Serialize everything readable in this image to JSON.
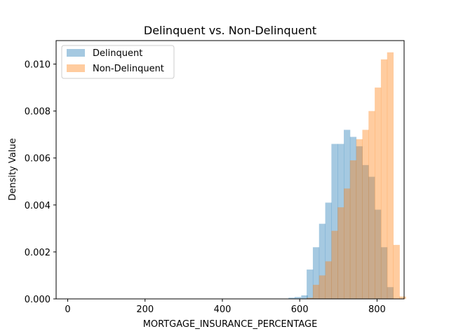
{
  "chart_data": {
    "type": "bar",
    "title": "Delinquent vs. Non-Delinquent",
    "xlabel": "MORTGAGE_INSURANCE_PERCENTAGE",
    "ylabel": "Density Value",
    "xlim": [
      -30,
      870
    ],
    "ylim": [
      0,
      0.011
    ],
    "xticks": [
      0,
      200,
      400,
      600,
      800
    ],
    "yticks": [
      0.0,
      0.002,
      0.004,
      0.006,
      0.008,
      0.01
    ],
    "ytick_labels": [
      "0.000",
      "0.002",
      "0.004",
      "0.006",
      "0.008",
      "0.010"
    ],
    "xtick_labels": [
      "0",
      "200",
      "400",
      "600",
      "800"
    ],
    "grid": false,
    "legend_position": "upper-left",
    "bin_width": 16.8,
    "series": [
      {
        "name": "Delinquent",
        "color": "#1f77b4",
        "opacity": 0.4,
        "bins": [
          {
            "x": 571,
            "v": 5e-05
          },
          {
            "x": 587,
            "v": 8e-05
          },
          {
            "x": 604,
            "v": 0.00015
          },
          {
            "x": 618,
            "v": 0.00125
          },
          {
            "x": 634,
            "v": 0.0022
          },
          {
            "x": 650,
            "v": 0.0032
          },
          {
            "x": 666,
            "v": 0.0041
          },
          {
            "x": 682,
            "v": 0.0066
          },
          {
            "x": 698,
            "v": 0.0066
          },
          {
            "x": 714,
            "v": 0.0072
          },
          {
            "x": 730,
            "v": 0.0069
          },
          {
            "x": 746,
            "v": 0.0065
          },
          {
            "x": 762,
            "v": 0.0057
          },
          {
            "x": 778,
            "v": 0.0052
          },
          {
            "x": 794,
            "v": 0.0038
          },
          {
            "x": 810,
            "v": 0.0022
          },
          {
            "x": 826,
            "v": 0.0005
          }
        ]
      },
      {
        "name": "Non-Delinquent",
        "color": "#ff7f0e",
        "opacity": 0.4,
        "bins": [
          {
            "x": 618,
            "v": 5e-05
          },
          {
            "x": 634,
            "v": 0.0006
          },
          {
            "x": 650,
            "v": 0.001
          },
          {
            "x": 666,
            "v": 0.0016
          },
          {
            "x": 682,
            "v": 0.0029
          },
          {
            "x": 698,
            "v": 0.0039
          },
          {
            "x": 714,
            "v": 0.0047
          },
          {
            "x": 730,
            "v": 0.0059
          },
          {
            "x": 746,
            "v": 0.0068
          },
          {
            "x": 762,
            "v": 0.0072
          },
          {
            "x": 778,
            "v": 0.008
          },
          {
            "x": 794,
            "v": 0.009
          },
          {
            "x": 810,
            "v": 0.0102
          },
          {
            "x": 826,
            "v": 0.0105
          },
          {
            "x": 842,
            "v": 0.0023
          },
          {
            "x": 858,
            "v": 0.0001
          }
        ]
      }
    ]
  }
}
